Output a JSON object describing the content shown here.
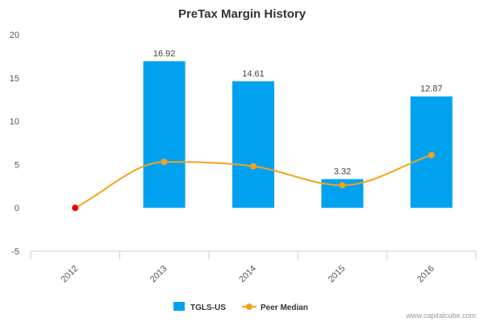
{
  "chart_data": {
    "type": "bar",
    "title": "PreTax Margin History",
    "categories": [
      "2012",
      "2013",
      "2014",
      "2015",
      "2016"
    ],
    "series": [
      {
        "name": "TGLS-US",
        "type": "bar",
        "color": "#00a2f0",
        "values": [
          null,
          16.92,
          14.61,
          3.32,
          12.87
        ],
        "data_labels": [
          "",
          "16.92",
          "14.61",
          "3.32",
          "12.87"
        ]
      },
      {
        "name": "Peer Median",
        "type": "line",
        "color": "#f5a11c",
        "values": [
          0.0,
          5.3,
          4.8,
          2.6,
          6.1
        ],
        "marker_colors": [
          "#ee0000",
          "#f5a11c",
          "#f5a11c",
          "#f5a11c",
          "#f5a11c"
        ]
      }
    ],
    "ylim": [
      -5,
      20
    ],
    "yticks": [
      "-5",
      "0",
      "5",
      "10",
      "15",
      "20"
    ],
    "xlabel": "",
    "ylabel": "",
    "grid": false,
    "legend": "bottom-center",
    "credit": "www.capitalcube.com"
  }
}
